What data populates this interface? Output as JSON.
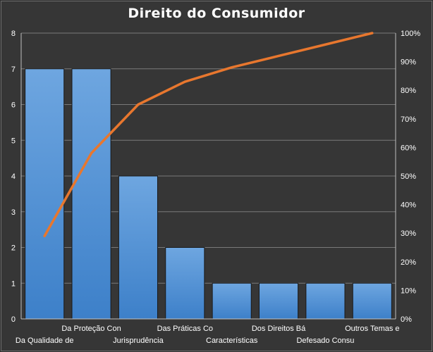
{
  "chart_data": {
    "type": "bar",
    "title": "Direito  do Consumidor",
    "categories": [
      "Da Qualidade de",
      "Da Proteção Con",
      "Jurisprudência",
      "Das Práticas Co",
      "Características",
      "Dos Direitos Bá",
      "Defesado Consu",
      "Outros Temas e"
    ],
    "values": [
      7,
      7,
      4,
      2,
      1,
      1,
      1,
      1
    ],
    "cumulative_percent": [
      29,
      58,
      75,
      83,
      88,
      92,
      96,
      100
    ],
    "ylim": [
      0,
      8
    ],
    "y_ticks": [
      "0",
      "1",
      "2",
      "3",
      "4",
      "5",
      "6",
      "7",
      "8"
    ],
    "y2lim": [
      0,
      100
    ],
    "y2_ticks": [
      "0%",
      "10%",
      "20%",
      "30%",
      "40%",
      "50%",
      "60%",
      "70%",
      "80%",
      "90%",
      "100%"
    ],
    "grid": true,
    "bar_color": "#4f90d4",
    "line_color": "#e8772e",
    "background_color": "#363636"
  }
}
